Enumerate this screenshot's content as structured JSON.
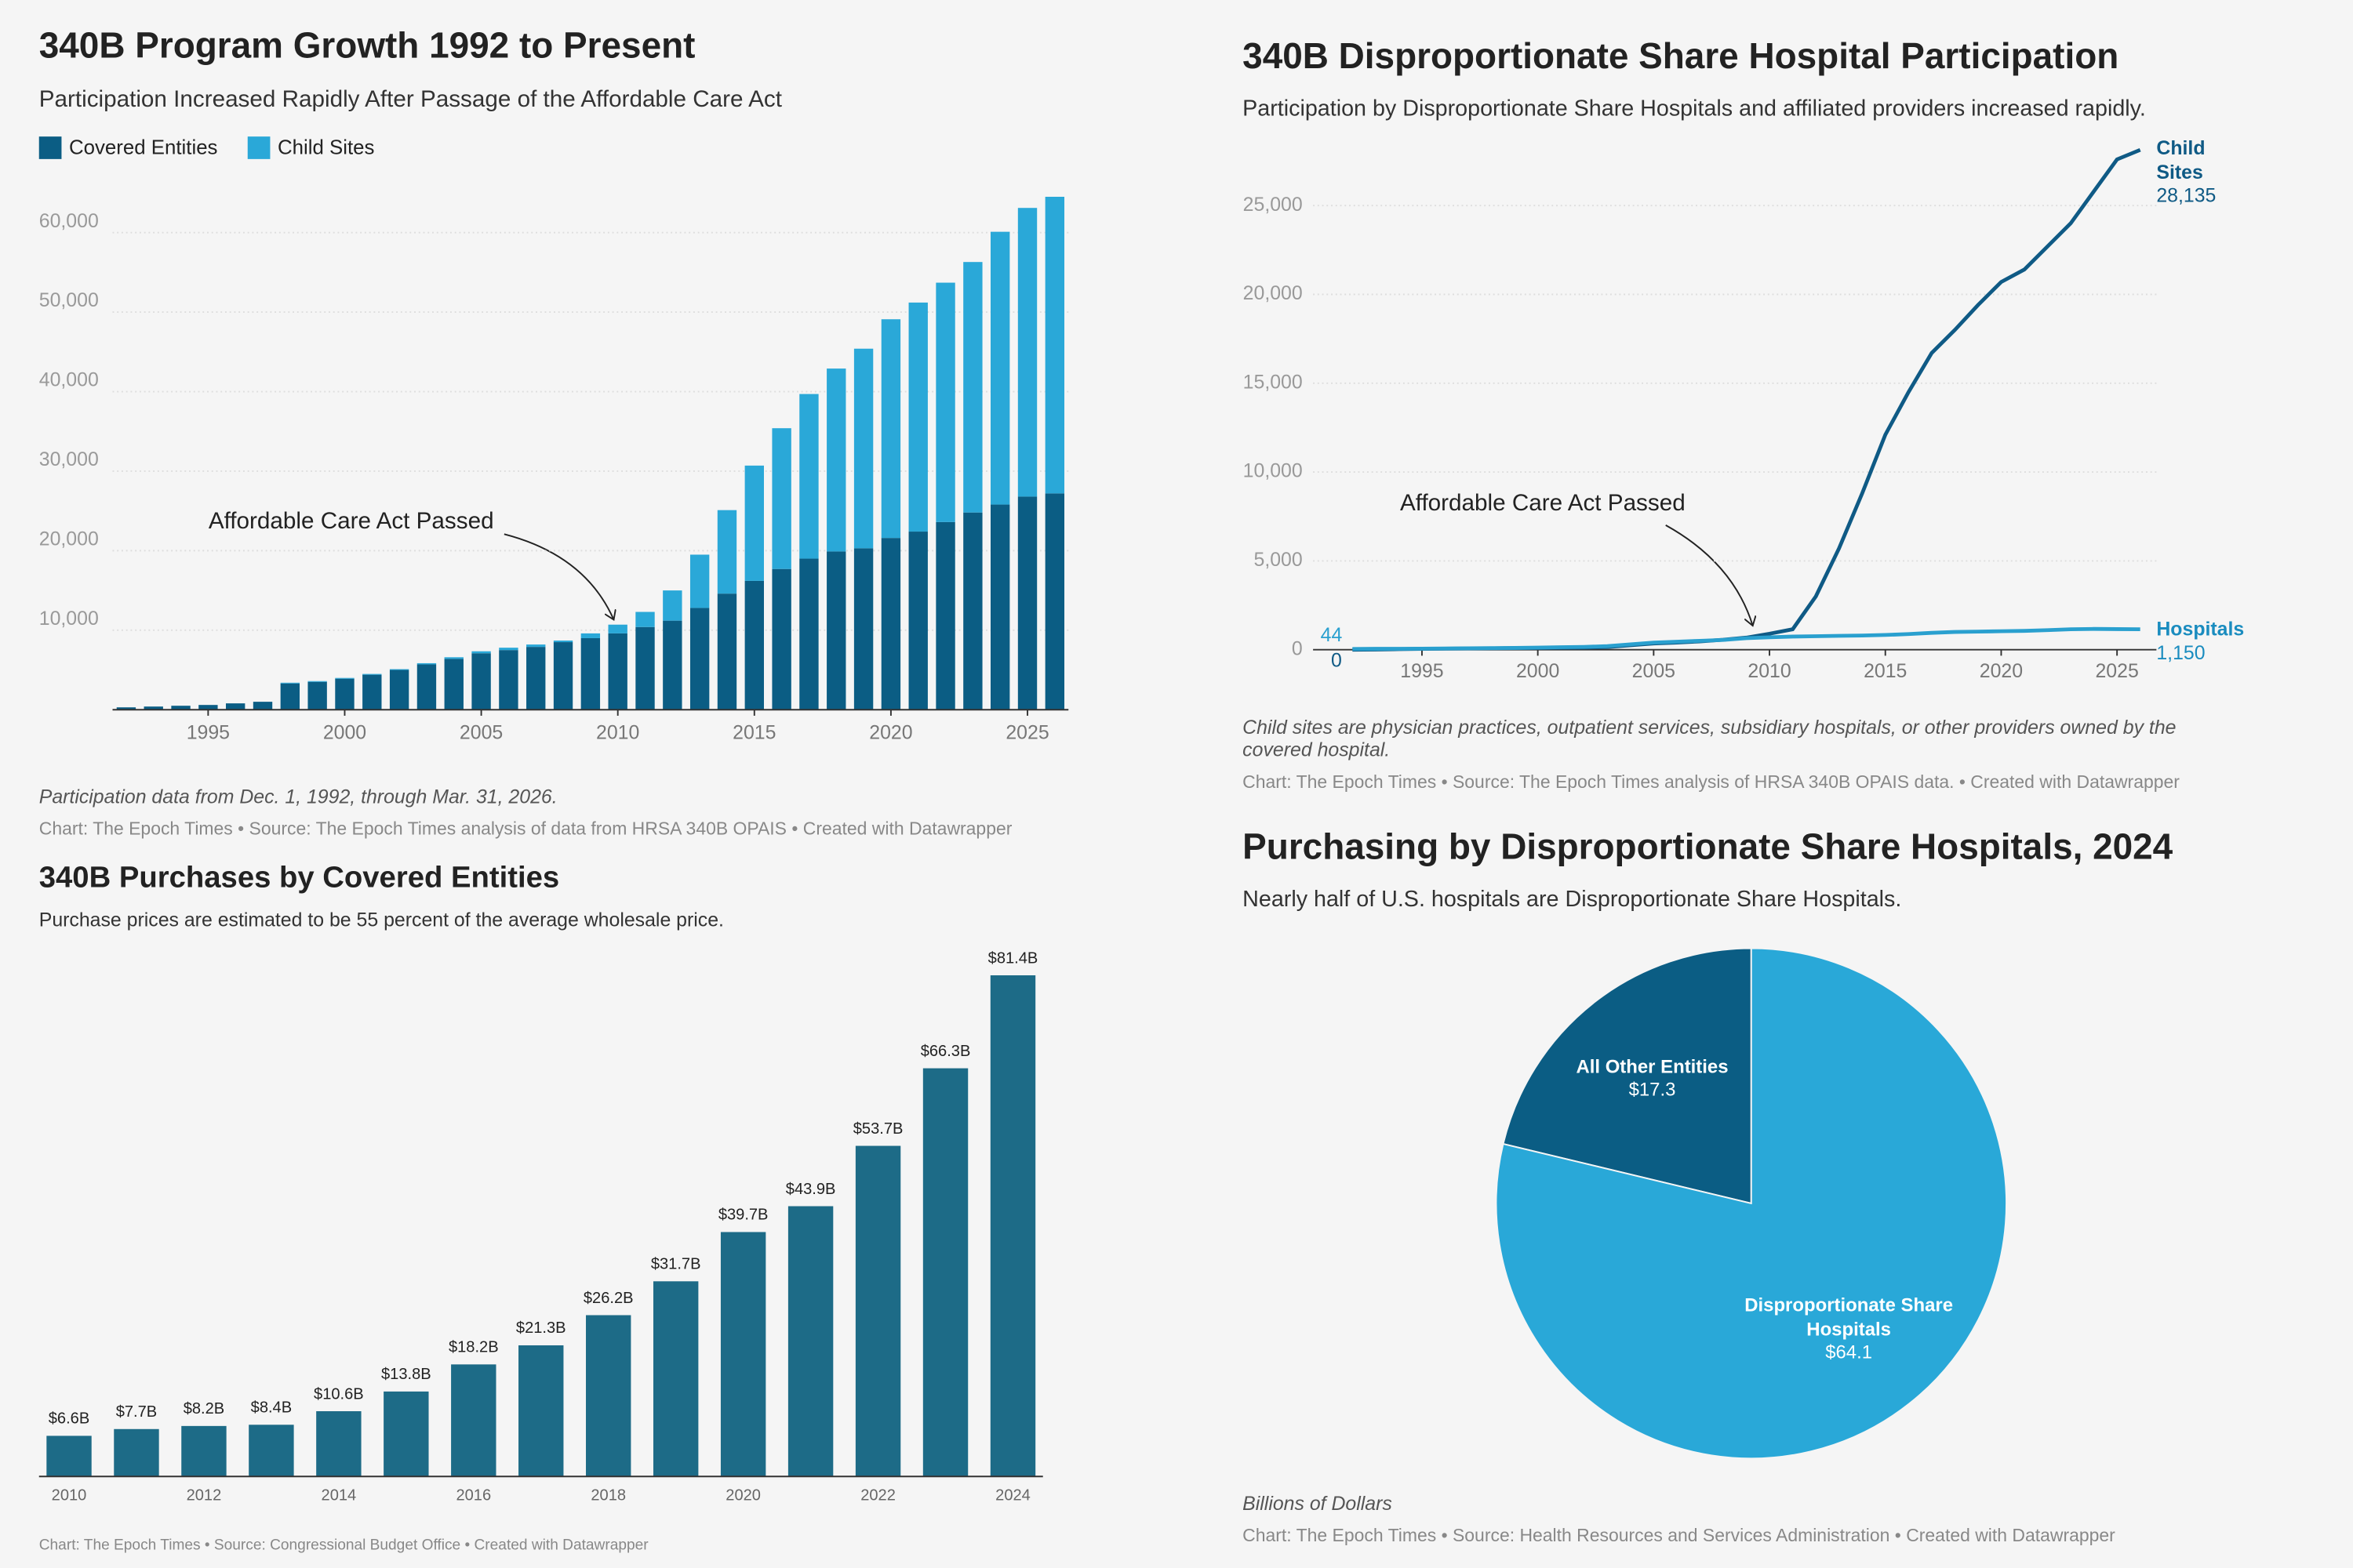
{
  "chart_data": [
    {
      "type": "bar",
      "stacked": true,
      "title": "340B Program Growth 1992 to Present",
      "subtitle": "Participation Increased Rapidly After Passage of the Affordable Care Act",
      "annotation": "Affordable Care Act Passed",
      "note": "Participation data from Dec. 1, 1992, through Mar. 31, 2026.",
      "source": "Chart: The Epoch Times • Source: The Epoch Times analysis of data from HRSA 340B OPAIS • Created with Datawrapper",
      "x": [
        1992,
        1993,
        1994,
        1995,
        1996,
        1997,
        1998,
        1999,
        2000,
        2001,
        2002,
        2003,
        2004,
        2005,
        2006,
        2007,
        2008,
        2009,
        2010,
        2011,
        2012,
        2013,
        2014,
        2015,
        2016,
        2017,
        2018,
        2019,
        2020,
        2021,
        2022,
        2023,
        2024,
        2025,
        2026
      ],
      "xlim": [
        1991.5,
        2026.5
      ],
      "xticks": [
        1995,
        2000,
        2005,
        2010,
        2015,
        2020,
        2025
      ],
      "ylim": [
        0,
        65000
      ],
      "yticks": [
        {
          "value": 10000,
          "label": "10,000"
        },
        {
          "value": 20000,
          "label": "20,000"
        },
        {
          "value": 30000,
          "label": "30,000"
        },
        {
          "value": 40000,
          "label": "40,000"
        },
        {
          "value": 50000,
          "label": "50,000"
        },
        {
          "value": 60000,
          "label": "60,000"
        }
      ],
      "grid": true,
      "series": [
        {
          "name": "Covered Entities",
          "color": "#0b5d84",
          "values": [
            300,
            400,
            500,
            600,
            800,
            1000,
            3300,
            3500,
            3900,
            4400,
            5000,
            5700,
            6400,
            7100,
            7500,
            7900,
            8500,
            9000,
            9600,
            10400,
            11200,
            12800,
            14600,
            16200,
            17700,
            19000,
            19900,
            20300,
            21600,
            22400,
            23600,
            24800,
            25800,
            26800,
            27200
          ]
        },
        {
          "name": "Child Sites",
          "color": "#2aa8d8",
          "values": [
            0,
            0,
            0,
            0,
            0,
            0,
            100,
            100,
            100,
            100,
            100,
            150,
            200,
            250,
            300,
            300,
            200,
            600,
            1100,
            1900,
            3800,
            6700,
            10500,
            14500,
            17700,
            20700,
            23000,
            25100,
            27500,
            28800,
            30100,
            31500,
            34300,
            36300,
            37300
          ]
        }
      ]
    },
    {
      "type": "line",
      "title": "340B Disproportionate Share Hospital Participation",
      "subtitle": "Participation by Disproportionate Share Hospitals and affiliated providers increased rapidly.",
      "annotation": "Affordable Care Act Passed",
      "note": "Child sites are physician practices, outpatient services, subsidiary hospitals, or other providers owned by the covered hospital.",
      "source": "Chart: The Epoch Times  • Source: The Epoch Times analysis of HRSA 340B OPAIS data. • Created with Datawrapper",
      "x": [
        1992,
        1993,
        1994,
        1995,
        1996,
        1997,
        1998,
        1999,
        2000,
        2001,
        2002,
        2003,
        2004,
        2005,
        2006,
        2007,
        2008,
        2009,
        2010,
        2011,
        2012,
        2013,
        2014,
        2015,
        2016,
        2017,
        2018,
        2019,
        2020,
        2021,
        2022,
        2023,
        2024,
        2025,
        2026
      ],
      "xlim": [
        1990.3,
        2026.7
      ],
      "xticks": [
        1995,
        2000,
        2005,
        2010,
        2015,
        2020,
        2025
      ],
      "ylim": [
        0,
        28500
      ],
      "yticks": [
        0,
        {
          "value": 5000,
          "label": "5,000"
        },
        {
          "value": 10000,
          "label": "10,000"
        },
        {
          "value": 15000,
          "label": "15,000"
        },
        {
          "value": 20000,
          "label": "20,000"
        },
        {
          "value": 25000,
          "label": "25,000"
        }
      ],
      "grid": true,
      "series": [
        {
          "name": "Child Sites",
          "color": "#0f5a85",
          "values": [
            0,
            10,
            30,
            50,
            60,
            70,
            80,
            90,
            100,
            110,
            120,
            150,
            250,
            350,
            400,
            470,
            560,
            680,
            900,
            1150,
            3000,
            5700,
            8800,
            12100,
            14500,
            16700,
            18000,
            19400,
            20700,
            21400,
            22700,
            24000,
            25800,
            27600,
            28135
          ],
          "value_labels": [
            null,
            null,
            null,
            null,
            null,
            null,
            null,
            null,
            null,
            null,
            null,
            null,
            null,
            null,
            null,
            null,
            null,
            null,
            null,
            null,
            null,
            null,
            null,
            null,
            null,
            null,
            null,
            null,
            null,
            null,
            null,
            null,
            null,
            null,
            "28,135"
          ]
        },
        {
          "name": "Hospitals",
          "color": "#2aa0cf",
          "values": [
            44,
            50,
            55,
            60,
            70,
            80,
            90,
            100,
            120,
            140,
            160,
            200,
            300,
            400,
            450,
            500,
            550,
            650,
            700,
            740,
            760,
            780,
            800,
            830,
            880,
            950,
            1000,
            1020,
            1040,
            1060,
            1100,
            1150,
            1170,
            1160,
            1150
          ],
          "value_labels": [
            null,
            null,
            null,
            null,
            null,
            null,
            null,
            null,
            null,
            null,
            null,
            null,
            null,
            null,
            null,
            null,
            null,
            null,
            null,
            null,
            null,
            null,
            null,
            null,
            null,
            null,
            null,
            null,
            null,
            null,
            null,
            null,
            null,
            null,
            "1,150"
          ]
        }
      ]
    },
    {
      "type": "bar",
      "title": "340B Purchases by Covered Entities",
      "subtitle": "Purchase prices are estimated to be 55 percent of the average wholesale price.",
      "source": "Chart: The Epoch Times • Source: Congressional Budget Office • Created with Datawrapper",
      "categories": [
        "2010",
        null,
        "2012",
        null,
        "2014",
        null,
        "2016",
        null,
        "2018",
        null,
        "2020",
        null,
        "2022",
        null,
        "2024"
      ],
      "values": [
        6.6,
        7.7,
        8.2,
        8.4,
        10.6,
        13.8,
        18.2,
        21.3,
        26.2,
        31.7,
        39.7,
        43.9,
        53.7,
        66.3,
        81.4
      ],
      "value_labels": [
        "$6.6B",
        "$7.7B",
        "$8.2B",
        "$8.4B",
        "$10.6B",
        "$13.8B",
        "$18.2B",
        "$21.3B",
        "$26.2B",
        "$31.7B",
        "$39.7B",
        "$43.9B",
        "$53.7B",
        "$66.3B",
        "$81.4B"
      ],
      "color": "#1d6b87"
    },
    {
      "type": "pie",
      "title": "Purchasing by Disproportionate Share Hospitals, 2024",
      "subtitle": "Nearly half of U.S. hospitals are Disproportionate Share Hospitals.",
      "note": "Billions of Dollars",
      "source": "Chart: The Epoch Times  • Source: Health Resources and Services Administration • Created with Datawrapper",
      "categories": [
        "All Other Entities",
        "Disproportionate Share Hospitals"
      ],
      "values": [
        17.3,
        64.1
      ],
      "value_labels": [
        "$17.3",
        "$64.1"
      ],
      "colors": [
        "#0b5d84",
        "#29a8d8"
      ]
    }
  ]
}
